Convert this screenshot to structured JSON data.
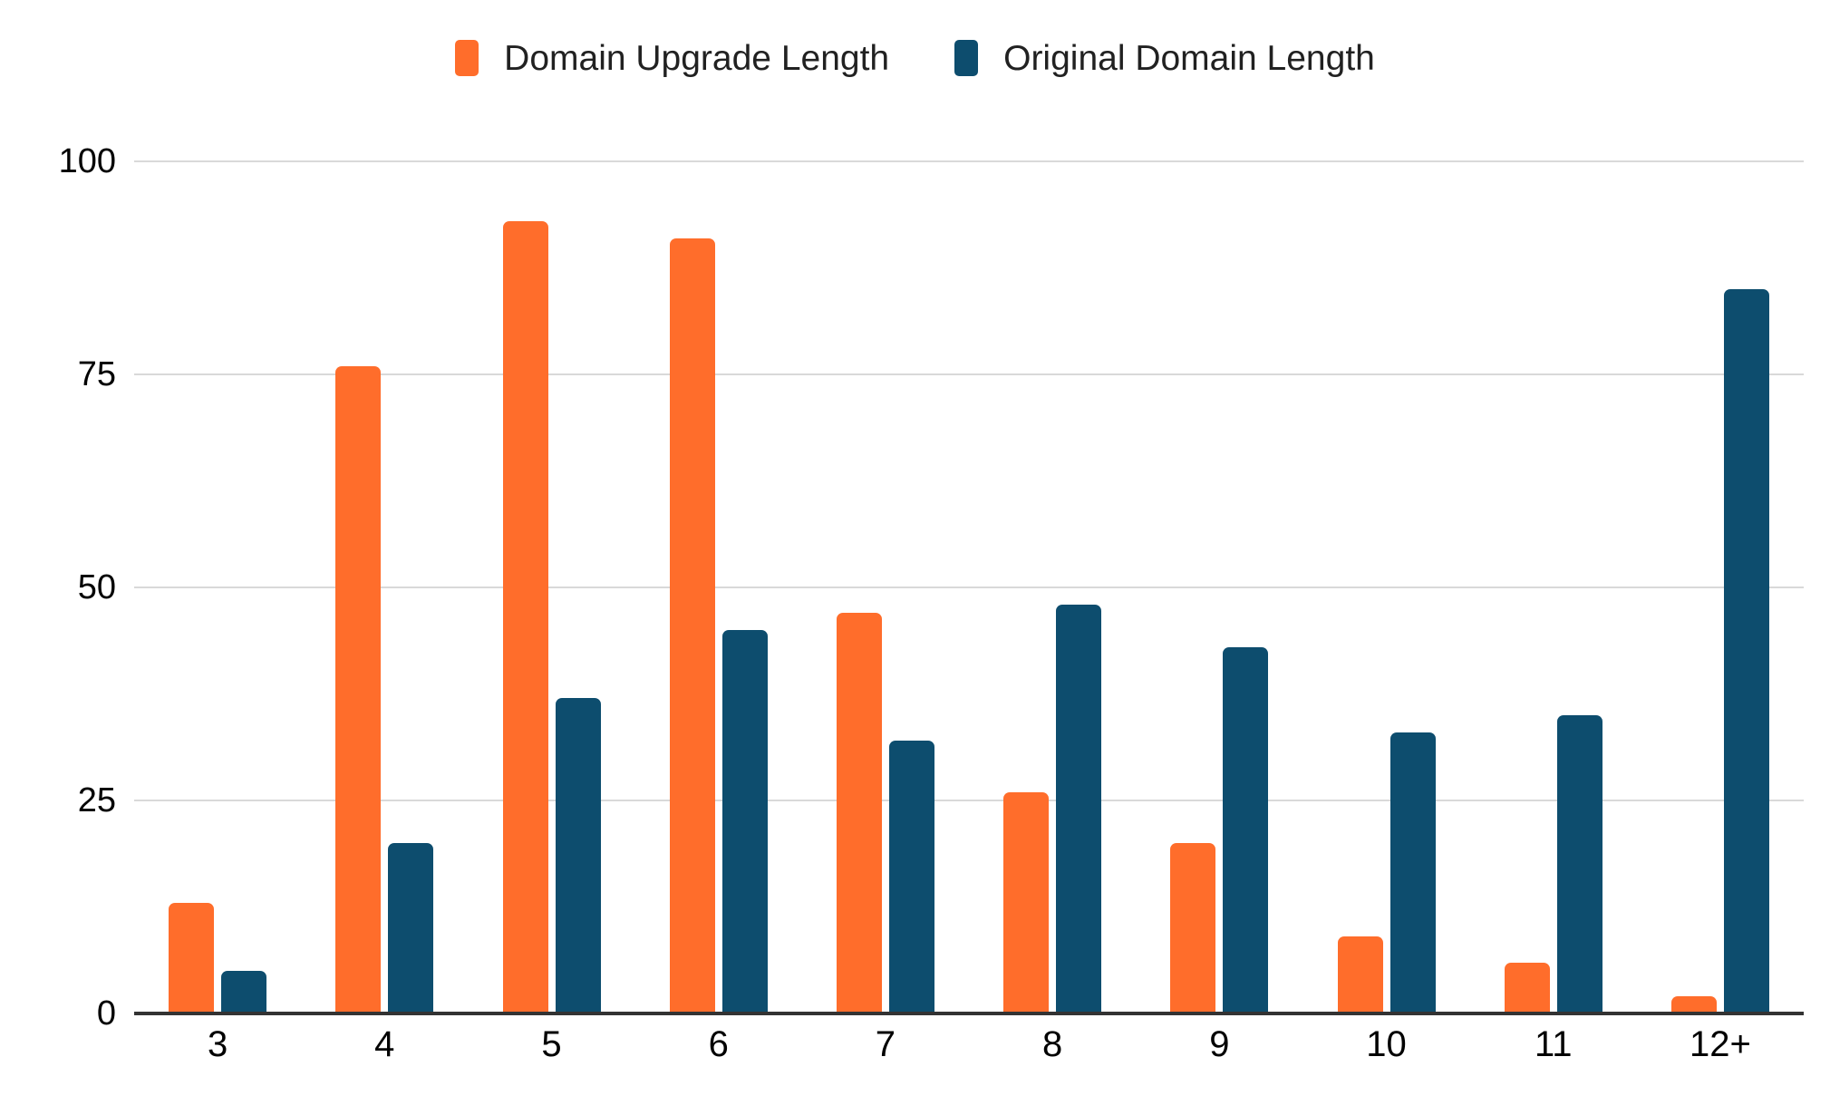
{
  "legend": [
    {
      "label": "Domain Upgrade Length",
      "color": "#FF6D2B"
    },
    {
      "label": "Original Domain Length",
      "color": "#0D4D6E"
    }
  ],
  "colors": {
    "background": "#FFFFFF",
    "gridline": "#D9D9D9",
    "axis_line": "#333333",
    "tick_label": "#000000",
    "legend_text": "#212121"
  },
  "chart_data": {
    "type": "bar",
    "title": "",
    "xlabel": "",
    "ylabel": "",
    "categories": [
      "3",
      "4",
      "5",
      "6",
      "7",
      "8",
      "9",
      "10",
      "11",
      "12+"
    ],
    "series": [
      {
        "name": "Domain Upgrade Length",
        "color": "#FF6D2B",
        "values": [
          13,
          76,
          93,
          91,
          47,
          26,
          20,
          9,
          6,
          2
        ]
      },
      {
        "name": "Original Domain Length",
        "color": "#0D4D6E",
        "values": [
          5,
          20,
          37,
          45,
          32,
          48,
          43,
          33,
          35,
          85
        ]
      }
    ],
    "ylim": [
      0,
      100
    ],
    "yticks": [
      0,
      25,
      50,
      75,
      100
    ],
    "grid": true,
    "legend_position": "top"
  }
}
